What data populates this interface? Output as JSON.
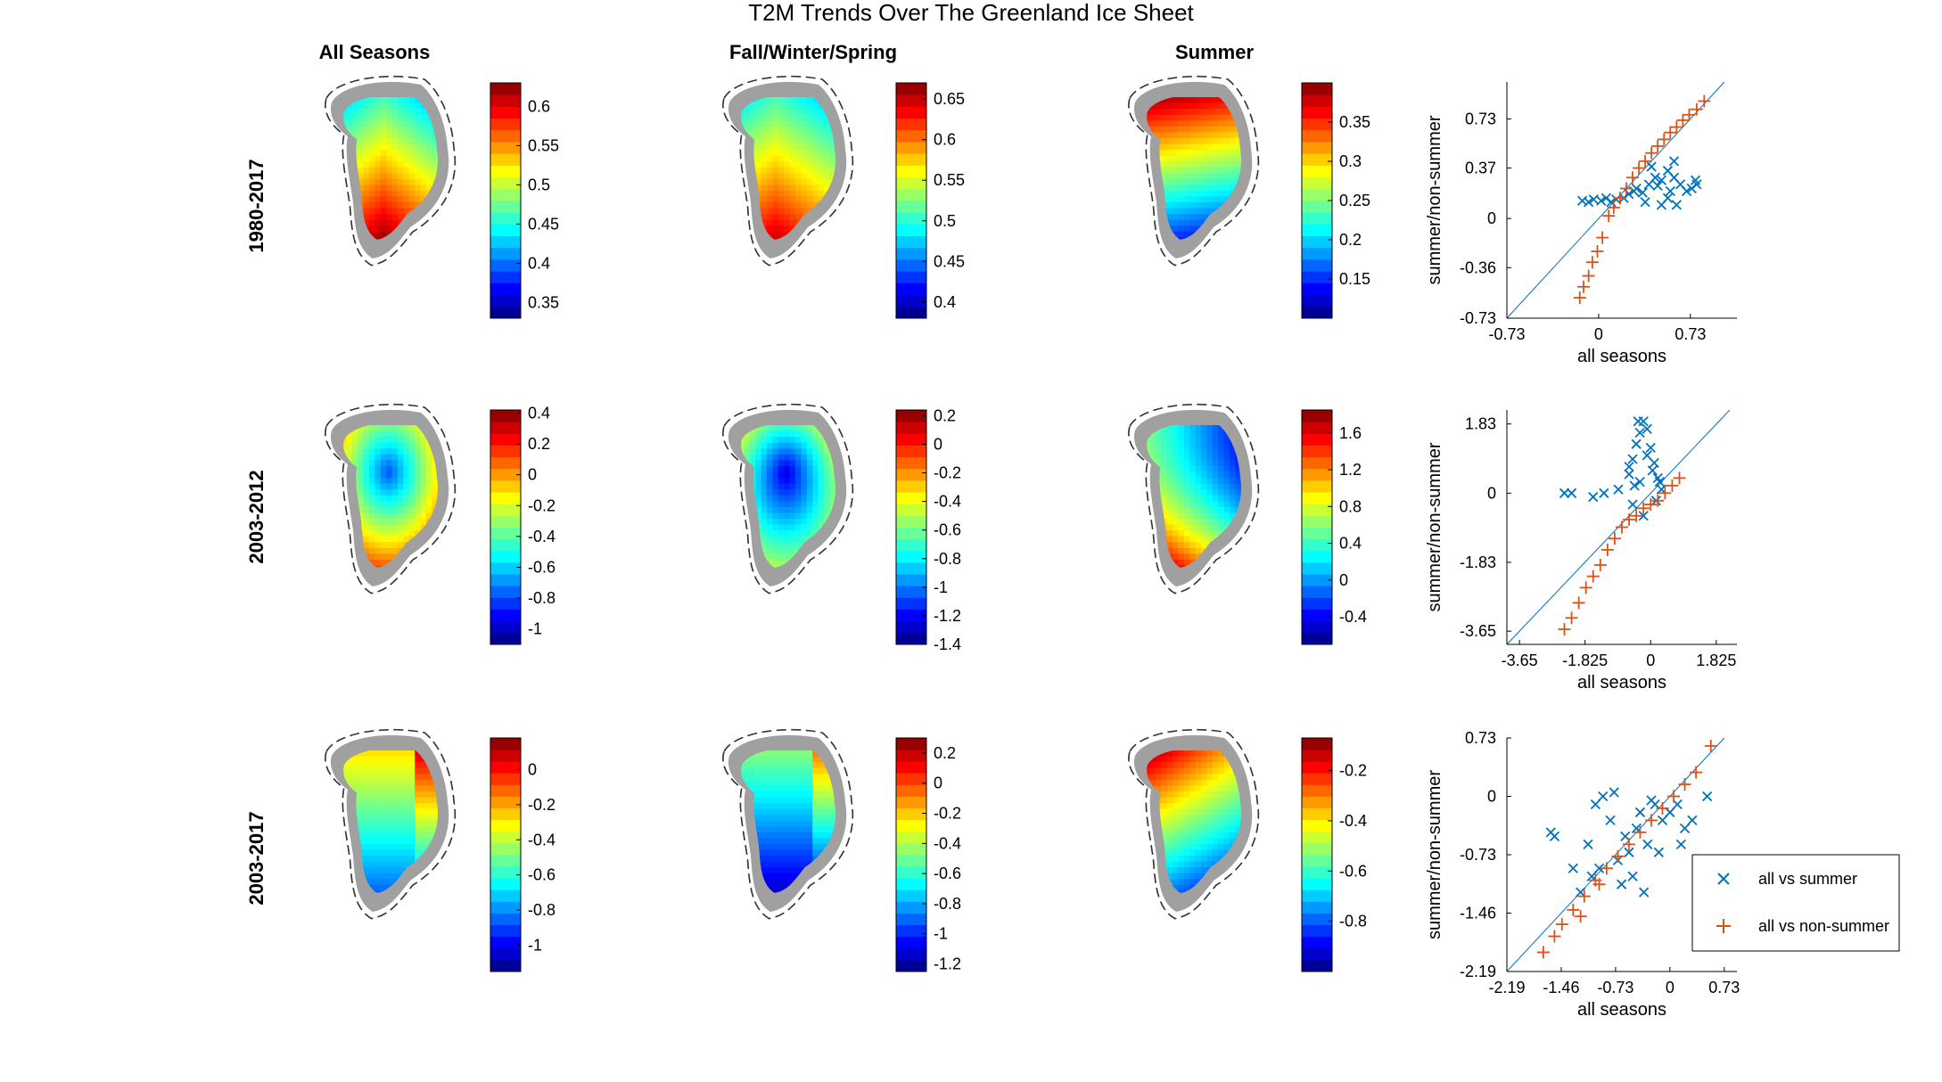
{
  "figure": {
    "title": "T2M Trends Over The Greenland Ice Sheet",
    "column_headers": [
      "All Seasons",
      "Fall/Winter/Spring",
      "Summer"
    ],
    "row_labels": [
      "1980-2017",
      "2003-2012",
      "2003-2017"
    ]
  },
  "legend": {
    "entries": [
      {
        "label": "all vs summer",
        "marker": "x",
        "color": "#0072BD"
      },
      {
        "label": "all vs non-summer",
        "marker": "+",
        "color": "#D95319"
      }
    ],
    "placement": "right of bottom scatter"
  },
  "colors": {
    "summer_series": "#0072BD",
    "nonsummer_series": "#D95319",
    "identity_line": "#0072BD",
    "land_mask": "#a0a0a0",
    "colormap": "jet"
  },
  "chart_data": [
    {
      "type": "heatmap",
      "title": "All Seasons",
      "row": "1980-2017",
      "colorbar": {
        "limits": [
          0.33,
          0.63
        ],
        "ticks": [
          0.35,
          0.4,
          0.45,
          0.5,
          0.55,
          0.6
        ],
        "tick_labels": [
          "0.35",
          "0.4",
          "0.45",
          "0.5",
          "0.55",
          "0.6"
        ]
      }
    },
    {
      "type": "heatmap",
      "title": "Fall/Winter/Spring",
      "row": "1980-2017",
      "colorbar": {
        "limits": [
          0.38,
          0.67
        ],
        "ticks": [
          0.4,
          0.45,
          0.5,
          0.55,
          0.6,
          0.65
        ],
        "tick_labels": [
          "0.4",
          "0.45",
          "0.5",
          "0.55",
          "0.6",
          "0.65"
        ]
      }
    },
    {
      "type": "heatmap",
      "title": "Summer",
      "row": "1980-2017",
      "colorbar": {
        "limits": [
          0.1,
          0.4
        ],
        "ticks": [
          0.15,
          0.2,
          0.25,
          0.3,
          0.35
        ],
        "tick_labels": [
          "0.15",
          "0.2",
          "0.25",
          "0.3",
          "0.35"
        ]
      }
    },
    {
      "type": "heatmap",
      "title": "All Seasons",
      "row": "2003-2012",
      "colorbar": {
        "limits": [
          -1.1,
          0.42
        ],
        "ticks": [
          -1,
          -0.8,
          -0.6,
          -0.4,
          -0.2,
          0,
          0.2,
          0.4
        ],
        "tick_labels": [
          "-1",
          "-0.8",
          "-0.6",
          "-0.4",
          "-0.2",
          "0",
          "0.2",
          "0.4"
        ]
      }
    },
    {
      "type": "heatmap",
      "title": "Fall/Winter/Spring",
      "row": "2003-2012",
      "colorbar": {
        "limits": [
          -1.4,
          0.24
        ],
        "ticks": [
          -1.4,
          -1.2,
          -1,
          -0.8,
          -0.6,
          -0.4,
          -0.2,
          0,
          0.2
        ],
        "tick_labels": [
          "-1.4",
          "-1.2",
          "-1",
          "-0.8",
          "-0.6",
          "-0.4",
          "-0.2",
          "0",
          "0.2"
        ]
      }
    },
    {
      "type": "heatmap",
      "title": "Summer",
      "row": "2003-2012",
      "colorbar": {
        "limits": [
          -0.7,
          1.85
        ],
        "ticks": [
          -0.4,
          0,
          0.4,
          0.8,
          1.2,
          1.6
        ],
        "tick_labels": [
          "-0.4",
          "0",
          "0.4",
          "0.8",
          "1.2",
          "1.6"
        ]
      }
    },
    {
      "type": "heatmap",
      "title": "All Seasons",
      "row": "2003-2017",
      "colorbar": {
        "limits": [
          -1.15,
          0.18
        ],
        "ticks": [
          -1,
          -0.8,
          -0.6,
          -0.4,
          -0.2,
          0
        ],
        "tick_labels": [
          "-1",
          "-0.8",
          "-0.6",
          "-0.4",
          "-0.2",
          "0"
        ]
      }
    },
    {
      "type": "heatmap",
      "title": "Fall/Winter/Spring",
      "row": "2003-2017",
      "colorbar": {
        "limits": [
          -1.25,
          0.3
        ],
        "ticks": [
          -1.2,
          -1,
          -0.8,
          -0.6,
          -0.4,
          -0.2,
          0,
          0.2
        ],
        "tick_labels": [
          "-1.2",
          "-1",
          "-0.8",
          "-0.6",
          "-0.4",
          "-0.2",
          "0",
          "0.2"
        ]
      }
    },
    {
      "type": "heatmap",
      "title": "Summer",
      "row": "2003-2017",
      "colorbar": {
        "limits": [
          -1.0,
          -0.07
        ],
        "ticks": [
          -0.8,
          -0.6,
          -0.4,
          -0.2
        ],
        "tick_labels": [
          "-0.8",
          "-0.6",
          "-0.4",
          "-0.2"
        ]
      }
    },
    {
      "type": "scatter",
      "row": "1980-2017",
      "xlabel": "all seasons",
      "ylabel": "summer/non-summer",
      "xlim": [
        -0.73,
        1.1
      ],
      "ylim": [
        -0.73,
        1.0
      ],
      "xticks": [
        -0.73,
        0,
        0.73
      ],
      "xtick_labels": [
        "-0.73",
        "0",
        "0.73"
      ],
      "yticks": [
        -0.73,
        -0.36,
        0,
        0.37,
        0.73
      ],
      "ytick_labels": [
        "-0.73",
        "-0.36",
        "0",
        "0.37",
        "0.73"
      ],
      "series": [
        {
          "name": "all vs summer",
          "marker": "x",
          "x": [
            -0.13,
            -0.08,
            -0.04,
            0.02,
            0.06,
            0.1,
            0.14,
            0.2,
            0.24,
            0.28,
            0.3,
            0.35,
            0.4,
            0.45,
            0.5,
            0.55,
            0.6,
            0.65,
            0.7,
            0.74,
            0.77,
            0.78,
            0.5,
            0.55,
            0.6,
            0.42,
            0.62,
            0.57,
            0.47,
            0.37
          ],
          "y": [
            0.13,
            0.12,
            0.14,
            0.13,
            0.15,
            0.12,
            0.14,
            0.15,
            0.18,
            0.2,
            0.22,
            0.19,
            0.25,
            0.3,
            0.28,
            0.35,
            0.3,
            0.25,
            0.2,
            0.22,
            0.28,
            0.25,
            0.1,
            0.15,
            0.42,
            0.38,
            0.1,
            0.2,
            0.24,
            0.12
          ]
        },
        {
          "name": "all vs non-summer",
          "marker": "+",
          "x": [
            -0.15,
            -0.12,
            -0.08,
            -0.05,
            -0.01,
            0.03,
            0.08,
            0.12,
            0.17,
            0.22,
            0.27,
            0.32,
            0.37,
            0.42,
            0.47,
            0.52,
            0.57,
            0.62,
            0.67,
            0.72,
            0.78,
            0.84
          ],
          "y": [
            -0.58,
            -0.5,
            -0.42,
            -0.32,
            -0.24,
            -0.14,
            0.02,
            0.08,
            0.15,
            0.22,
            0.3,
            0.37,
            0.42,
            0.48,
            0.53,
            0.58,
            0.63,
            0.67,
            0.72,
            0.76,
            0.8,
            0.86
          ]
        }
      ]
    },
    {
      "type": "scatter",
      "row": "2003-2012",
      "xlabel": "all seasons",
      "ylabel": "summer/non-summer",
      "xlim": [
        -4.0,
        2.4
      ],
      "ylim": [
        -4.0,
        2.2
      ],
      "xticks": [
        -3.65,
        -1.825,
        0,
        1.825
      ],
      "xtick_labels": [
        "-3.65",
        "-1.825",
        "0",
        "1.825"
      ],
      "yticks": [
        -3.65,
        -1.83,
        0,
        1.83
      ],
      "ytick_labels": [
        "-3.65",
        "-1.83",
        "0",
        "1.83"
      ],
      "series": [
        {
          "name": "all vs summer",
          "marker": "x",
          "x": [
            -2.4,
            -2.2,
            -1.6,
            -1.3,
            -0.9,
            -0.6,
            -0.5,
            -0.4,
            -0.3,
            -0.2,
            -0.1,
            0.0,
            0.1,
            0.2,
            -0.3,
            -0.5,
            0.05,
            -0.2,
            0.3,
            -0.45,
            -0.1,
            0.15,
            -0.35,
            -0.6,
            0.25
          ],
          "y": [
            0.0,
            0.0,
            -0.1,
            0.0,
            0.1,
            0.5,
            0.9,
            1.3,
            1.6,
            1.9,
            1.7,
            1.2,
            0.8,
            0.4,
            0.3,
            -0.3,
            0.6,
            -0.6,
            0.1,
            0.2,
            1.0,
            -0.2,
            1.9,
            0.7,
            0.3
          ]
        },
        {
          "name": "all vs non-summer",
          "marker": "+",
          "x": [
            -2.4,
            -2.2,
            -2.0,
            -1.8,
            -1.6,
            -1.4,
            -1.2,
            -1.0,
            -0.8,
            -0.6,
            -0.4,
            -0.2,
            0.0,
            0.2,
            0.4,
            0.6,
            0.8
          ],
          "y": [
            -3.6,
            -3.3,
            -2.9,
            -2.5,
            -2.2,
            -1.9,
            -1.5,
            -1.2,
            -0.9,
            -0.7,
            -0.6,
            -0.4,
            -0.3,
            -0.2,
            0.0,
            0.2,
            0.4
          ]
        }
      ]
    },
    {
      "type": "scatter",
      "row": "2003-2017",
      "xlabel": "all seasons",
      "ylabel": "summer/non-summer",
      "xlim": [
        -2.19,
        0.9
      ],
      "ylim": [
        -2.19,
        0.73
      ],
      "xticks": [
        -2.19,
        -1.46,
        -0.73,
        0,
        0.73
      ],
      "xtick_labels": [
        "-2.19",
        "-1.46",
        "-0.73",
        "0",
        "0.73"
      ],
      "yticks": [
        -2.19,
        -1.46,
        -0.73,
        0,
        0.73
      ],
      "ytick_labels": [
        "-2.19",
        "-1.46",
        "-0.73",
        "0",
        "0.73"
      ],
      "series": [
        {
          "name": "all vs summer",
          "marker": "x",
          "x": [
            -1.6,
            -1.55,
            -1.3,
            -1.2,
            -1.1,
            -1.0,
            -0.9,
            -0.8,
            -0.7,
            -0.6,
            -0.5,
            -0.4,
            -0.3,
            -0.2,
            -0.1,
            0.0,
            0.1,
            0.2,
            0.3,
            0.5,
            -0.95,
            -0.75,
            -0.55,
            -0.35,
            -0.15,
            -0.65,
            -0.25,
            -1.05,
            -0.45,
            0.15
          ],
          "y": [
            -0.45,
            -0.5,
            -0.9,
            -1.2,
            -0.6,
            -0.1,
            0.0,
            -0.3,
            -0.8,
            -0.5,
            -1.0,
            -0.2,
            -0.6,
            -0.1,
            -0.3,
            -0.2,
            -0.1,
            -0.4,
            -0.3,
            0.0,
            -0.9,
            0.05,
            -0.7,
            -1.2,
            -0.7,
            -1.1,
            -0.05,
            -1.0,
            -0.4,
            -0.6
          ]
        },
        {
          "name": "all vs non-summer",
          "marker": "+",
          "x": [
            -1.7,
            -1.55,
            -1.45,
            -1.3,
            -1.15,
            -1.0,
            -0.85,
            -0.7,
            -0.55,
            -0.4,
            -0.25,
            -0.1,
            0.05,
            0.2,
            0.35,
            0.55,
            -1.2,
            -0.95
          ],
          "y": [
            -1.95,
            -1.75,
            -1.6,
            -1.42,
            -1.25,
            -1.05,
            -0.9,
            -0.75,
            -0.6,
            -0.45,
            -0.3,
            -0.15,
            0.0,
            0.15,
            0.3,
            0.63,
            -1.5,
            -1.1
          ]
        }
      ]
    }
  ]
}
